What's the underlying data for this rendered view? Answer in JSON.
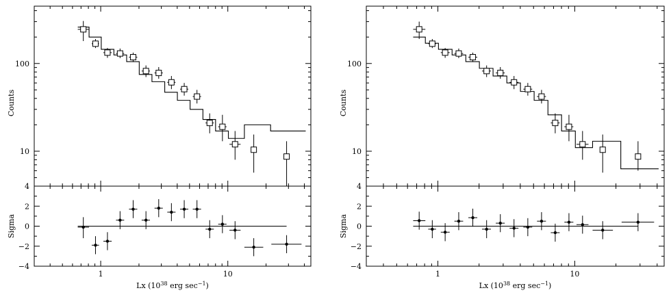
{
  "colors": {
    "ink": "#000000",
    "background": "#ffffff"
  },
  "shared_axes": {
    "xlabel": "Lx (10",
    "xlabel_exp": "38",
    "xlabel_tail": " erg sec",
    "xlabel_tail_exp": "−1",
    "xlabel_close": ")",
    "top_ylabel": "Counts",
    "bottom_ylabel": "Sigma"
  },
  "chart_data": [
    {
      "type": "scatter",
      "panel": "left",
      "xscale": "log",
      "xlim": [
        0.3,
        45
      ],
      "top": {
        "yscale": "log",
        "ylim": [
          4,
          450
        ],
        "ytick_labels": [
          {
            "value": 10,
            "label": "10"
          },
          {
            "value": 100,
            "label": "100"
          },
          {
            "value": 4,
            "label": "4"
          }
        ],
        "points": [
          {
            "x": 0.73,
            "y": 245,
            "ylo": 180,
            "yhi": 305,
            "xlo": 0.66,
            "xhi": 0.81
          },
          {
            "x": 0.91,
            "y": 168,
            "ylo": 150,
            "yhi": 190,
            "xlo": 0.85,
            "xhi": 0.97
          },
          {
            "x": 1.13,
            "y": 133,
            "ylo": 116,
            "yhi": 150,
            "xlo": 1.05,
            "xhi": 1.22
          },
          {
            "x": 1.42,
            "y": 130,
            "ylo": 115,
            "yhi": 148,
            "xlo": 1.32,
            "xhi": 1.53
          },
          {
            "x": 1.8,
            "y": 118,
            "ylo": 104,
            "yhi": 133,
            "xlo": 1.67,
            "xhi": 1.94
          },
          {
            "x": 2.27,
            "y": 82,
            "ylo": 70,
            "yhi": 95,
            "xlo": 2.1,
            "xhi": 2.44
          },
          {
            "x": 2.86,
            "y": 78,
            "ylo": 67,
            "yhi": 91,
            "xlo": 2.65,
            "xhi": 3.08
          },
          {
            "x": 3.6,
            "y": 61,
            "ylo": 51,
            "yhi": 72,
            "xlo": 3.34,
            "xhi": 3.88
          },
          {
            "x": 4.54,
            "y": 51,
            "ylo": 43,
            "yhi": 60,
            "xlo": 4.21,
            "xhi": 4.89
          },
          {
            "x": 5.72,
            "y": 42,
            "ylo": 35,
            "yhi": 50,
            "xlo": 5.3,
            "xhi": 6.16
          },
          {
            "x": 7.2,
            "y": 21,
            "ylo": 16,
            "yhi": 27,
            "xlo": 6.68,
            "xhi": 7.76
          },
          {
            "x": 9.07,
            "y": 19,
            "ylo": 13,
            "yhi": 26,
            "xlo": 8.4,
            "xhi": 9.77
          },
          {
            "x": 11.4,
            "y": 12,
            "ylo": 8,
            "yhi": 17,
            "xlo": 10.3,
            "xhi": 12.6
          },
          {
            "x": 16.0,
            "y": 10.4,
            "ylo": 5.7,
            "yhi": 15.5,
            "xlo": 15.3,
            "xhi": 16.7
          },
          {
            "x": 29.0,
            "y": 8.7,
            "ylo": 4,
            "yhi": 13,
            "xlo": 29.0,
            "xhi": 29.0
          }
        ],
        "model_steps": [
          {
            "x0": 0.66,
            "x1": 0.81,
            "y": 260
          },
          {
            "x0": 0.81,
            "x1": 1.01,
            "y": 200
          },
          {
            "x0": 1.01,
            "x1": 1.27,
            "y": 145
          },
          {
            "x0": 1.27,
            "x1": 1.6,
            "y": 125
          },
          {
            "x0": 1.6,
            "x1": 2.01,
            "y": 105
          },
          {
            "x0": 2.01,
            "x1": 2.53,
            "y": 75
          },
          {
            "x0": 2.53,
            "x1": 3.19,
            "y": 62
          },
          {
            "x0": 3.19,
            "x1": 4.01,
            "y": 47
          },
          {
            "x0": 4.01,
            "x1": 5.05,
            "y": 38
          },
          {
            "x0": 5.05,
            "x1": 6.37,
            "y": 30
          },
          {
            "x0": 6.37,
            "x1": 8.01,
            "y": 23
          },
          {
            "x0": 8.01,
            "x1": 10.1,
            "y": 17
          },
          {
            "x0": 10.1,
            "x1": 13.5,
            "y": 14
          },
          {
            "x0": 13.5,
            "x1": 21.7,
            "y": 20
          },
          {
            "x0": 21.7,
            "x1": 41.0,
            "y": 17
          }
        ]
      },
      "bottom": {
        "yscale": "linear",
        "ylim": [
          -4,
          4
        ],
        "ytick_labels": [
          {
            "value": 2,
            "label": "2"
          },
          {
            "value": 0,
            "label": "0"
          },
          {
            "value": -2,
            "label": "−2"
          },
          {
            "value": -4,
            "label": "−4"
          }
        ],
        "zero_line": [
          0.66,
          29.0
        ],
        "points": [
          {
            "x": 0.73,
            "y": -0.1,
            "ylo": -1.2,
            "yhi": 0.9,
            "xlo": 0.66,
            "xhi": 0.81
          },
          {
            "x": 0.91,
            "y": -1.9,
            "ylo": -2.8,
            "yhi": -1.0,
            "xlo": 0.85,
            "xhi": 0.97
          },
          {
            "x": 1.13,
            "y": -1.5,
            "ylo": -2.4,
            "yhi": -0.6,
            "xlo": 1.05,
            "xhi": 1.22
          },
          {
            "x": 1.42,
            "y": 0.6,
            "ylo": -0.3,
            "yhi": 1.5,
            "xlo": 1.32,
            "xhi": 1.53
          },
          {
            "x": 1.8,
            "y": 1.7,
            "ylo": 0.8,
            "yhi": 2.6,
            "xlo": 1.67,
            "xhi": 1.94
          },
          {
            "x": 2.27,
            "y": 0.6,
            "ylo": -0.3,
            "yhi": 1.5,
            "xlo": 2.1,
            "xhi": 2.44
          },
          {
            "x": 2.86,
            "y": 1.8,
            "ylo": 0.9,
            "yhi": 2.7,
            "xlo": 2.65,
            "xhi": 3.08
          },
          {
            "x": 3.6,
            "y": 1.4,
            "ylo": 0.5,
            "yhi": 2.3,
            "xlo": 3.34,
            "xhi": 3.88
          },
          {
            "x": 4.54,
            "y": 1.7,
            "ylo": 0.8,
            "yhi": 2.6,
            "xlo": 4.21,
            "xhi": 4.89
          },
          {
            "x": 5.72,
            "y": 1.7,
            "ylo": 0.8,
            "yhi": 2.6,
            "xlo": 5.3,
            "xhi": 6.16
          },
          {
            "x": 7.2,
            "y": -0.3,
            "ylo": -1.2,
            "yhi": 0.6,
            "xlo": 6.68,
            "xhi": 7.76
          },
          {
            "x": 9.07,
            "y": 0.2,
            "ylo": -0.7,
            "yhi": 1.1,
            "xlo": 8.4,
            "xhi": 9.77
          },
          {
            "x": 11.4,
            "y": -0.4,
            "ylo": -1.3,
            "yhi": 0.5,
            "xlo": 10.3,
            "xhi": 12.6
          },
          {
            "x": 16.0,
            "y": -2.1,
            "ylo": -3.0,
            "yhi": -1.2,
            "xlo": 13.5,
            "xhi": 19.0
          },
          {
            "x": 29.0,
            "y": -1.8,
            "ylo": -2.7,
            "yhi": -0.9,
            "xlo": 22.0,
            "xhi": 38.0
          }
        ]
      },
      "xtick_labels": [
        {
          "value": 1,
          "label": "1"
        },
        {
          "value": 10,
          "label": "10"
        }
      ]
    },
    {
      "type": "scatter",
      "panel": "right",
      "xscale": "log",
      "xlim": [
        0.3,
        45
      ],
      "top": {
        "yscale": "log",
        "ylim": [
          4,
          450
        ],
        "ytick_labels": [
          {
            "value": 10,
            "label": "10"
          },
          {
            "value": 100,
            "label": "100"
          },
          {
            "value": 4,
            "label": "4"
          }
        ],
        "points": [
          {
            "x": 0.73,
            "y": 245,
            "ylo": 190,
            "yhi": 300,
            "xlo": 0.66,
            "xhi": 0.81
          },
          {
            "x": 0.91,
            "y": 168,
            "ylo": 150,
            "yhi": 190,
            "xlo": 0.85,
            "xhi": 0.97
          },
          {
            "x": 1.13,
            "y": 133,
            "ylo": 116,
            "yhi": 150,
            "xlo": 1.05,
            "xhi": 1.22
          },
          {
            "x": 1.42,
            "y": 130,
            "ylo": 115,
            "yhi": 148,
            "xlo": 1.32,
            "xhi": 1.53
          },
          {
            "x": 1.8,
            "y": 118,
            "ylo": 104,
            "yhi": 133,
            "xlo": 1.67,
            "xhi": 1.94
          },
          {
            "x": 2.27,
            "y": 82,
            "ylo": 70,
            "yhi": 95,
            "xlo": 2.1,
            "xhi": 2.44
          },
          {
            "x": 2.86,
            "y": 78,
            "ylo": 67,
            "yhi": 91,
            "xlo": 2.65,
            "xhi": 3.08
          },
          {
            "x": 3.6,
            "y": 61,
            "ylo": 51,
            "yhi": 72,
            "xlo": 3.34,
            "xhi": 3.88
          },
          {
            "x": 4.54,
            "y": 51,
            "ylo": 43,
            "yhi": 60,
            "xlo": 4.21,
            "xhi": 4.89
          },
          {
            "x": 5.72,
            "y": 42,
            "ylo": 35,
            "yhi": 50,
            "xlo": 5.3,
            "xhi": 6.16
          },
          {
            "x": 7.2,
            "y": 21,
            "ylo": 16,
            "yhi": 27,
            "xlo": 6.68,
            "xhi": 7.76
          },
          {
            "x": 9.07,
            "y": 19,
            "ylo": 13,
            "yhi": 26,
            "xlo": 8.4,
            "xhi": 9.77
          },
          {
            "x": 11.4,
            "y": 12,
            "ylo": 8,
            "yhi": 17,
            "xlo": 10.3,
            "xhi": 12.6
          },
          {
            "x": 16.0,
            "y": 10.4,
            "ylo": 5.7,
            "yhi": 15.5,
            "xlo": 15.3,
            "xhi": 16.7
          },
          {
            "x": 29.0,
            "y": 8.7,
            "ylo": 6.0,
            "yhi": 13,
            "xlo": 29.0,
            "xhi": 29.0
          }
        ],
        "model_steps": [
          {
            "x0": 0.66,
            "x1": 0.81,
            "y": 200
          },
          {
            "x0": 0.81,
            "x1": 1.01,
            "y": 170
          },
          {
            "x0": 1.01,
            "x1": 1.27,
            "y": 145
          },
          {
            "x0": 1.27,
            "x1": 1.6,
            "y": 125
          },
          {
            "x0": 1.6,
            "x1": 2.01,
            "y": 105
          },
          {
            "x0": 2.01,
            "x1": 2.53,
            "y": 88
          },
          {
            "x0": 2.53,
            "x1": 3.19,
            "y": 72
          },
          {
            "x0": 3.19,
            "x1": 4.01,
            "y": 60
          },
          {
            "x0": 4.01,
            "x1": 5.05,
            "y": 48
          },
          {
            "x0": 5.05,
            "x1": 6.37,
            "y": 38
          },
          {
            "x0": 6.37,
            "x1": 8.01,
            "y": 26
          },
          {
            "x0": 8.01,
            "x1": 10.1,
            "y": 17
          },
          {
            "x0": 10.1,
            "x1": 13.5,
            "y": 11
          },
          {
            "x0": 13.5,
            "x1": 21.7,
            "y": 13
          },
          {
            "x0": 21.7,
            "x1": 41.0,
            "y": 6.3
          }
        ]
      },
      "bottom": {
        "yscale": "linear",
        "ylim": [
          -4,
          4
        ],
        "ytick_labels": [
          {
            "value": 2,
            "label": "2"
          },
          {
            "value": 0,
            "label": "0"
          },
          {
            "value": -2,
            "label": "−2"
          },
          {
            "value": -4,
            "label": "−4"
          }
        ],
        "zero_line": [
          0.66,
          29.0
        ],
        "points": [
          {
            "x": 0.73,
            "y": 0.55,
            "ylo": -0.35,
            "yhi": 1.45,
            "xlo": 0.66,
            "xhi": 0.81
          },
          {
            "x": 0.91,
            "y": -0.3,
            "ylo": -1.2,
            "yhi": 0.6,
            "xlo": 0.85,
            "xhi": 0.97
          },
          {
            "x": 1.13,
            "y": -0.6,
            "ylo": -1.5,
            "yhi": 0.3,
            "xlo": 1.05,
            "xhi": 1.22
          },
          {
            "x": 1.42,
            "y": 0.5,
            "ylo": -0.4,
            "yhi": 1.4,
            "xlo": 1.32,
            "xhi": 1.53
          },
          {
            "x": 1.8,
            "y": 0.85,
            "ylo": -0.05,
            "yhi": 1.75,
            "xlo": 1.67,
            "xhi": 1.94
          },
          {
            "x": 2.27,
            "y": -0.3,
            "ylo": -1.2,
            "yhi": 0.6,
            "xlo": 2.1,
            "xhi": 2.44
          },
          {
            "x": 2.86,
            "y": 0.3,
            "ylo": -0.6,
            "yhi": 1.2,
            "xlo": 2.65,
            "xhi": 3.08
          },
          {
            "x": 3.6,
            "y": -0.2,
            "ylo": -1.1,
            "yhi": 0.7,
            "xlo": 3.34,
            "xhi": 3.88
          },
          {
            "x": 4.54,
            "y": -0.1,
            "ylo": -1.0,
            "yhi": 0.8,
            "xlo": 4.21,
            "xhi": 4.89
          },
          {
            "x": 5.72,
            "y": 0.5,
            "ylo": -0.4,
            "yhi": 1.4,
            "xlo": 5.3,
            "xhi": 6.16
          },
          {
            "x": 7.2,
            "y": -0.65,
            "ylo": -1.55,
            "yhi": 0.25,
            "xlo": 6.68,
            "xhi": 7.76
          },
          {
            "x": 9.07,
            "y": 0.4,
            "ylo": -0.5,
            "yhi": 1.3,
            "xlo": 8.4,
            "xhi": 9.77
          },
          {
            "x": 11.4,
            "y": 0.15,
            "ylo": -0.75,
            "yhi": 1.05,
            "xlo": 10.3,
            "xhi": 12.6
          },
          {
            "x": 16.0,
            "y": -0.4,
            "ylo": -1.3,
            "yhi": 0.5,
            "xlo": 13.5,
            "xhi": 19.0
          },
          {
            "x": 29.0,
            "y": 0.4,
            "ylo": -0.5,
            "yhi": 1.3,
            "xlo": 22.0,
            "xhi": 38.0
          }
        ]
      },
      "xtick_labels": [
        {
          "value": 1,
          "label": "1"
        },
        {
          "value": 10,
          "label": "10"
        }
      ]
    }
  ]
}
